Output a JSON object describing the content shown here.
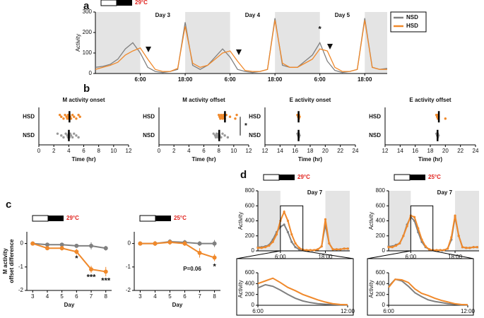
{
  "panel_labels": [
    "a",
    "b",
    "c",
    "d"
  ],
  "chart_data": [
    {
      "type": "line",
      "temperature": "29°C",
      "days": [
        "Day 3",
        "Day 4",
        "Day 5"
      ],
      "ylabel": "Activity",
      "x": [
        -6,
        -4,
        -2,
        0,
        2,
        4,
        6,
        8,
        10,
        12,
        14,
        16,
        18,
        20,
        22,
        24,
        26,
        28,
        30,
        32,
        34,
        36,
        38,
        40,
        42,
        44,
        46,
        48,
        50,
        52,
        54,
        56,
        58,
        60,
        62,
        64,
        66,
        68,
        70,
        72
      ],
      "xlim": [
        -6,
        72
      ],
      "xticks": [
        {
          "value": 6,
          "label": "6:00"
        },
        {
          "value": 18,
          "label": "18:00"
        },
        {
          "value": 30,
          "label": "6:00"
        },
        {
          "value": 42,
          "label": "18:00"
        },
        {
          "value": 54,
          "label": "6:00"
        },
        {
          "value": 66,
          "label": "18:00"
        }
      ],
      "ylim": [
        0,
        300
      ],
      "yticks": [
        0,
        100,
        200,
        300
      ],
      "shade": [
        [
          -6,
          6
        ],
        [
          18,
          30
        ],
        [
          42,
          54
        ],
        [
          66,
          72
        ]
      ],
      "legend": "upper right",
      "series": [
        {
          "name": "NSD",
          "color": "#808080",
          "values": [
            30,
            35,
            45,
            70,
            120,
            150,
            100,
            30,
            10,
            5,
            10,
            20,
            250,
            40,
            20,
            40,
            80,
            120,
            80,
            20,
            10,
            5,
            10,
            20,
            270,
            40,
            30,
            30,
            60,
            90,
            150,
            60,
            15,
            5,
            10,
            20,
            270,
            30,
            20,
            25
          ]
        },
        {
          "name": "HSD",
          "color": "#f0892b",
          "values": [
            20,
            30,
            40,
            55,
            90,
            110,
            125,
            70,
            20,
            10,
            10,
            25,
            230,
            50,
            30,
            40,
            70,
            100,
            110,
            60,
            15,
            10,
            10,
            20,
            260,
            50,
            30,
            30,
            50,
            70,
            120,
            110,
            30,
            10,
            10,
            20,
            260,
            30,
            20,
            20
          ]
        }
      ],
      "annotations": [
        {
          "text": "*",
          "x": 54,
          "y": 215
        }
      ]
    },
    {
      "type": "strip",
      "title": "M activity onset",
      "xlabel": "Time (hr)",
      "xlim": [
        0,
        12
      ],
      "xticks": [
        0,
        2,
        4,
        6,
        8,
        10,
        12
      ],
      "groups": [
        {
          "name": "HSD",
          "color": "#f0892b",
          "values": [
            2.8,
            3.0,
            3.3,
            3.5,
            3.7,
            3.8,
            3.9,
            4.0,
            4.0,
            4.1,
            4.2,
            4.3,
            4.5,
            4.7,
            5.0,
            5.3,
            5.5
          ]
        },
        {
          "name": "NSD",
          "color": "#9a9a9a",
          "values": [
            2.5,
            3.0,
            3.3,
            3.6,
            3.8,
            3.9,
            4.0,
            4.0,
            4.1,
            4.2,
            4.3,
            4.5,
            4.7,
            5.0,
            5.3
          ]
        }
      ]
    },
    {
      "type": "strip",
      "title": "M activity offset",
      "xlabel": "Time (hr)",
      "xlim": [
        0,
        12
      ],
      "xticks": [
        0,
        2,
        4,
        6,
        8,
        10,
        12
      ],
      "significance": "*",
      "groups": [
        {
          "name": "HSD",
          "color": "#f0892b",
          "values": [
            8.0,
            8.1,
            8.2,
            8.3,
            8.4,
            8.5,
            8.6,
            8.7,
            8.8,
            9.0,
            9.5,
            10.2,
            10.4
          ]
        },
        {
          "name": "NSD",
          "color": "#9a9a9a",
          "values": [
            7.3,
            7.5,
            7.6,
            7.7,
            7.8,
            7.9,
            8.0,
            8.1,
            8.3,
            8.5,
            8.8,
            9.2
          ]
        }
      ]
    },
    {
      "type": "strip",
      "title": "E activity onset",
      "xlabel": "Time (hr)",
      "xlim": [
        12,
        24
      ],
      "xticks": [
        12,
        14,
        16,
        18,
        20,
        22,
        24
      ],
      "groups": [
        {
          "name": "HSD",
          "color": "#f0892b",
          "values": [
            16.3,
            16.4,
            16.5,
            16.5,
            16.6
          ]
        },
        {
          "name": "NSD",
          "color": "#9a9a9a",
          "values": [
            16.3,
            16.4,
            16.5,
            16.5,
            16.6
          ]
        }
      ]
    },
    {
      "type": "strip",
      "title": "E activity offset",
      "xlabel": "Time (hr)",
      "xlim": [
        12,
        24
      ],
      "xticks": [
        12,
        14,
        16,
        18,
        20,
        22,
        24
      ],
      "groups": [
        {
          "name": "HSD",
          "color": "#f0892b",
          "values": [
            18.8,
            18.9,
            19.0,
            19.0,
            19.1,
            20.0
          ]
        },
        {
          "name": "NSD",
          "color": "#9a9a9a",
          "values": [
            18.8,
            18.9,
            19.0,
            19.0,
            19.1
          ]
        }
      ]
    },
    {
      "type": "line",
      "temperature": "29°C",
      "ylabel": [
        "M activity",
        "offset difference"
      ],
      "xlabel": "Day",
      "markers": true,
      "x": [
        3,
        4,
        5,
        6,
        7,
        8
      ],
      "xlim": [
        2.6,
        8.4
      ],
      "xticks": [
        3,
        4,
        5,
        6,
        7,
        8
      ],
      "ylim": [
        -2,
        0.5
      ],
      "yticks": [
        0,
        -1,
        -2
      ],
      "series": [
        {
          "name": "NSD",
          "color": "#808080",
          "values": [
            0,
            -0.05,
            -0.05,
            -0.1,
            -0.1,
            -0.2
          ],
          "errors": [
            0.03,
            0.05,
            0.05,
            0.08,
            0.15,
            0.1
          ]
        },
        {
          "name": "HSD",
          "color": "#f0892b",
          "values": [
            0,
            -0.2,
            -0.2,
            -0.35,
            -1.1,
            -1.2
          ],
          "errors": [
            0.03,
            0.08,
            0.1,
            0.12,
            0.15,
            0.2
          ]
        }
      ],
      "annotations": [
        {
          "text": "*",
          "x": 6,
          "y": -0.65
        },
        {
          "text": "***",
          "x": 7,
          "y": -1.45
        },
        {
          "text": "***",
          "x": 8,
          "y": -1.6
        }
      ]
    },
    {
      "type": "line",
      "temperature": "25°C",
      "xlabel": "Day",
      "markers": true,
      "x": [
        3,
        4,
        5,
        6,
        7,
        8
      ],
      "xlim": [
        2.6,
        8.4
      ],
      "xticks": [
        3,
        4,
        5,
        6,
        7,
        8
      ],
      "ylim": [
        -2,
        0.5
      ],
      "yticks": [
        0,
        -1,
        -2
      ],
      "series": [
        {
          "name": "NSD",
          "color": "#808080",
          "values": [
            0,
            0,
            0.08,
            0.05,
            0,
            0
          ],
          "errors": [
            0.03,
            0.1,
            0.1,
            0.1,
            0.1,
            0.15
          ]
        },
        {
          "name": "HSD",
          "color": "#f0892b",
          "values": [
            0,
            0,
            0.05,
            0,
            -0.4,
            -0.6
          ],
          "errors": [
            0.03,
            0.1,
            0.1,
            0.1,
            0.2,
            0.15
          ]
        }
      ],
      "annotations": [
        {
          "text": "P=0.06",
          "x": 6.5,
          "y": -1.1
        },
        {
          "text": "*",
          "x": 8,
          "y": -1.0
        }
      ]
    },
    {
      "type": "line",
      "temperature": "29°C",
      "title": "Day 7",
      "ylabel": "Activity",
      "markers": true,
      "x": [
        0,
        1,
        2,
        3,
        4,
        5,
        6,
        7,
        8,
        9,
        10,
        11,
        12,
        13,
        14,
        15,
        16,
        17,
        18,
        19,
        20,
        21,
        22,
        23,
        24
      ],
      "xlim": [
        0,
        24.5
      ],
      "xticks": [
        {
          "value": 6,
          "label": "6:00"
        },
        {
          "value": 18,
          "label": "18:00"
        }
      ],
      "ylim": [
        0,
        800
      ],
      "yticks": [
        0,
        200,
        400,
        600,
        800
      ],
      "shade": [
        [
          0,
          6
        ],
        [
          18,
          24.5
        ]
      ],
      "series": [
        {
          "name": "NSD",
          "color": "#808080",
          "values": [
            50,
            50,
            60,
            80,
            150,
            250,
            320,
            350,
            250,
            120,
            50,
            20,
            10,
            10,
            10,
            10,
            20,
            60,
            350,
            100,
            20,
            20,
            20,
            30,
            30
          ]
        },
        {
          "name": "HSD",
          "color": "#f0892b",
          "values": [
            40,
            40,
            50,
            70,
            120,
            220,
            400,
            520,
            400,
            220,
            100,
            40,
            15,
            10,
            10,
            10,
            20,
            60,
            420,
            100,
            20,
            20,
            20,
            30,
            30
          ]
        }
      ]
    },
    {
      "type": "line",
      "ylabel": "Activity",
      "x": [
        6,
        6.5,
        7,
        7.5,
        8,
        8.5,
        9,
        9.5,
        10,
        10.5,
        11,
        11.5,
        12
      ],
      "xlim": [
        6,
        12
      ],
      "xticks": [
        {
          "value": 6,
          "label": "6:00"
        },
        {
          "value": 12,
          "label": "12:00"
        }
      ],
      "ylim": [
        0,
        600
      ],
      "yticks": [
        0,
        200,
        400,
        600
      ],
      "series": [
        {
          "name": "NSD",
          "color": "#808080",
          "values": [
            320,
            380,
            350,
            280,
            200,
            130,
            80,
            50,
            30,
            20,
            15,
            10,
            10
          ]
        },
        {
          "name": "HSD",
          "color": "#f0892b",
          "values": [
            400,
            450,
            500,
            420,
            330,
            270,
            200,
            150,
            100,
            60,
            30,
            15,
            10
          ]
        }
      ]
    },
    {
      "type": "line",
      "temperature": "25°C",
      "title": "Day 7",
      "ylabel": "Activity",
      "markers": true,
      "x": [
        0,
        1,
        2,
        3,
        4,
        5,
        6,
        7,
        8,
        9,
        10,
        11,
        12,
        13,
        14,
        15,
        16,
        17,
        18,
        19,
        20,
        21,
        22,
        23,
        24
      ],
      "xlim": [
        0,
        24.5
      ],
      "xticks": [
        {
          "value": 6,
          "label": "6:00"
        },
        {
          "value": 18,
          "label": "18:00"
        }
      ],
      "ylim": [
        0,
        800
      ],
      "yticks": [
        0,
        200,
        400,
        600,
        800
      ],
      "shade": [
        [
          0,
          6
        ],
        [
          18,
          24.5
        ]
      ],
      "series": [
        {
          "name": "NSD",
          "color": "#808080",
          "values": [
            60,
            60,
            80,
            100,
            200,
            350,
            450,
            400,
            250,
            120,
            50,
            20,
            10,
            10,
            10,
            10,
            30,
            150,
            450,
            200,
            50,
            40,
            40,
            50,
            50
          ]
        },
        {
          "name": "HSD",
          "color": "#f0892b",
          "values": [
            50,
            50,
            70,
            100,
            200,
            330,
            470,
            450,
            300,
            150,
            60,
            20,
            10,
            10,
            10,
            10,
            30,
            180,
            470,
            200,
            50,
            40,
            40,
            50,
            50
          ]
        }
      ]
    },
    {
      "type": "line",
      "ylabel": "Activity",
      "x": [
        6,
        6.5,
        7,
        7.5,
        8,
        8.5,
        9,
        9.5,
        10,
        10.5,
        11,
        11.5,
        12
      ],
      "xlim": [
        6,
        12
      ],
      "xticks": [
        {
          "value": 6,
          "label": "6:00"
        },
        {
          "value": 12,
          "label": "12:00"
        }
      ],
      "ylim": [
        0,
        600
      ],
      "yticks": [
        0,
        200,
        400,
        600
      ],
      "series": [
        {
          "name": "NSD",
          "color": "#808080",
          "values": [
            350,
            480,
            450,
            350,
            230,
            160,
            100,
            70,
            50,
            30,
            20,
            10,
            10
          ]
        },
        {
          "name": "HSD",
          "color": "#f0892b",
          "values": [
            330,
            480,
            470,
            420,
            300,
            220,
            180,
            130,
            90,
            60,
            30,
            15,
            10
          ]
        }
      ]
    }
  ]
}
